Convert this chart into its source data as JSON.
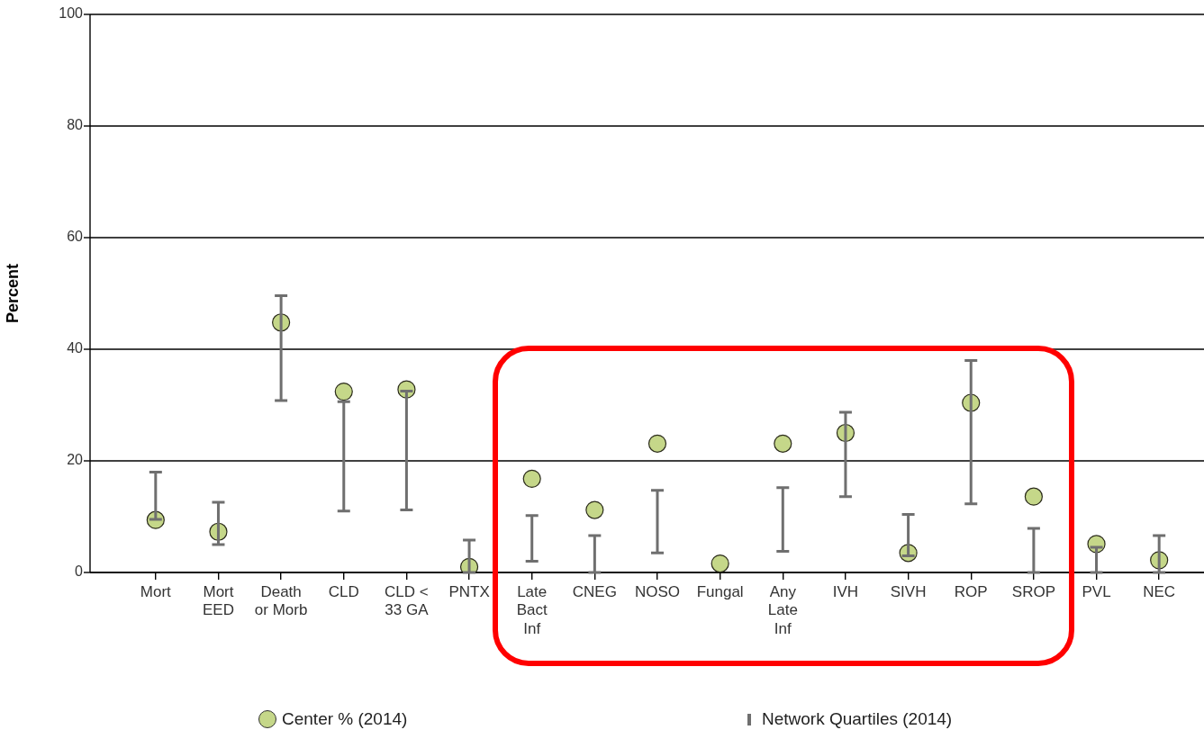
{
  "chart_data": {
    "type": "scatter",
    "ylabel": "Percent",
    "categories": [
      "Mort",
      "Mort EED",
      "Death or Morb",
      "CLD",
      "CLD < 33 GA",
      "PNTX",
      "Late Bact Inf",
      "CNEG",
      "NOSO",
      "Fungal",
      "Any Late Inf",
      "IVH",
      "SIVH",
      "ROP",
      "SROP",
      "PVL",
      "NEC"
    ],
    "series": [
      {
        "name": "Center % (2014)",
        "color": "#c5d789",
        "values": [
          9.4,
          7.3,
          44.8,
          32.4,
          32.8,
          1.0,
          16.8,
          11.2,
          23.1,
          1.6,
          23.1,
          25.0,
          3.5,
          30.4,
          13.6,
          5.1,
          2.2
        ],
        "errors": [
          [
            9.5,
            18
          ],
          [
            5.0,
            12.6
          ],
          [
            30.8,
            49.6
          ],
          [
            11.0,
            30.6
          ],
          [
            11.2,
            32.5
          ],
          [
            0,
            5.8
          ],
          [
            2.0,
            10.2
          ],
          [
            0,
            6.6
          ],
          [
            3.5,
            14.7
          ],
          null,
          [
            3.8,
            15.2
          ],
          [
            13.6,
            28.7
          ],
          [
            3.0,
            10.4
          ],
          [
            12.3,
            38.0
          ],
          [
            0,
            7.9
          ],
          [
            0,
            4.5
          ],
          [
            0,
            6.6
          ]
        ]
      }
    ],
    "annotations": [
      "Network Quartiles (2014)"
    ],
    "ylim": [
      0,
      100
    ],
    "yticks": [
      0,
      20,
      40,
      60,
      80,
      100
    ],
    "grid": "y",
    "legend": "bottom",
    "marker": "circle"
  }
}
